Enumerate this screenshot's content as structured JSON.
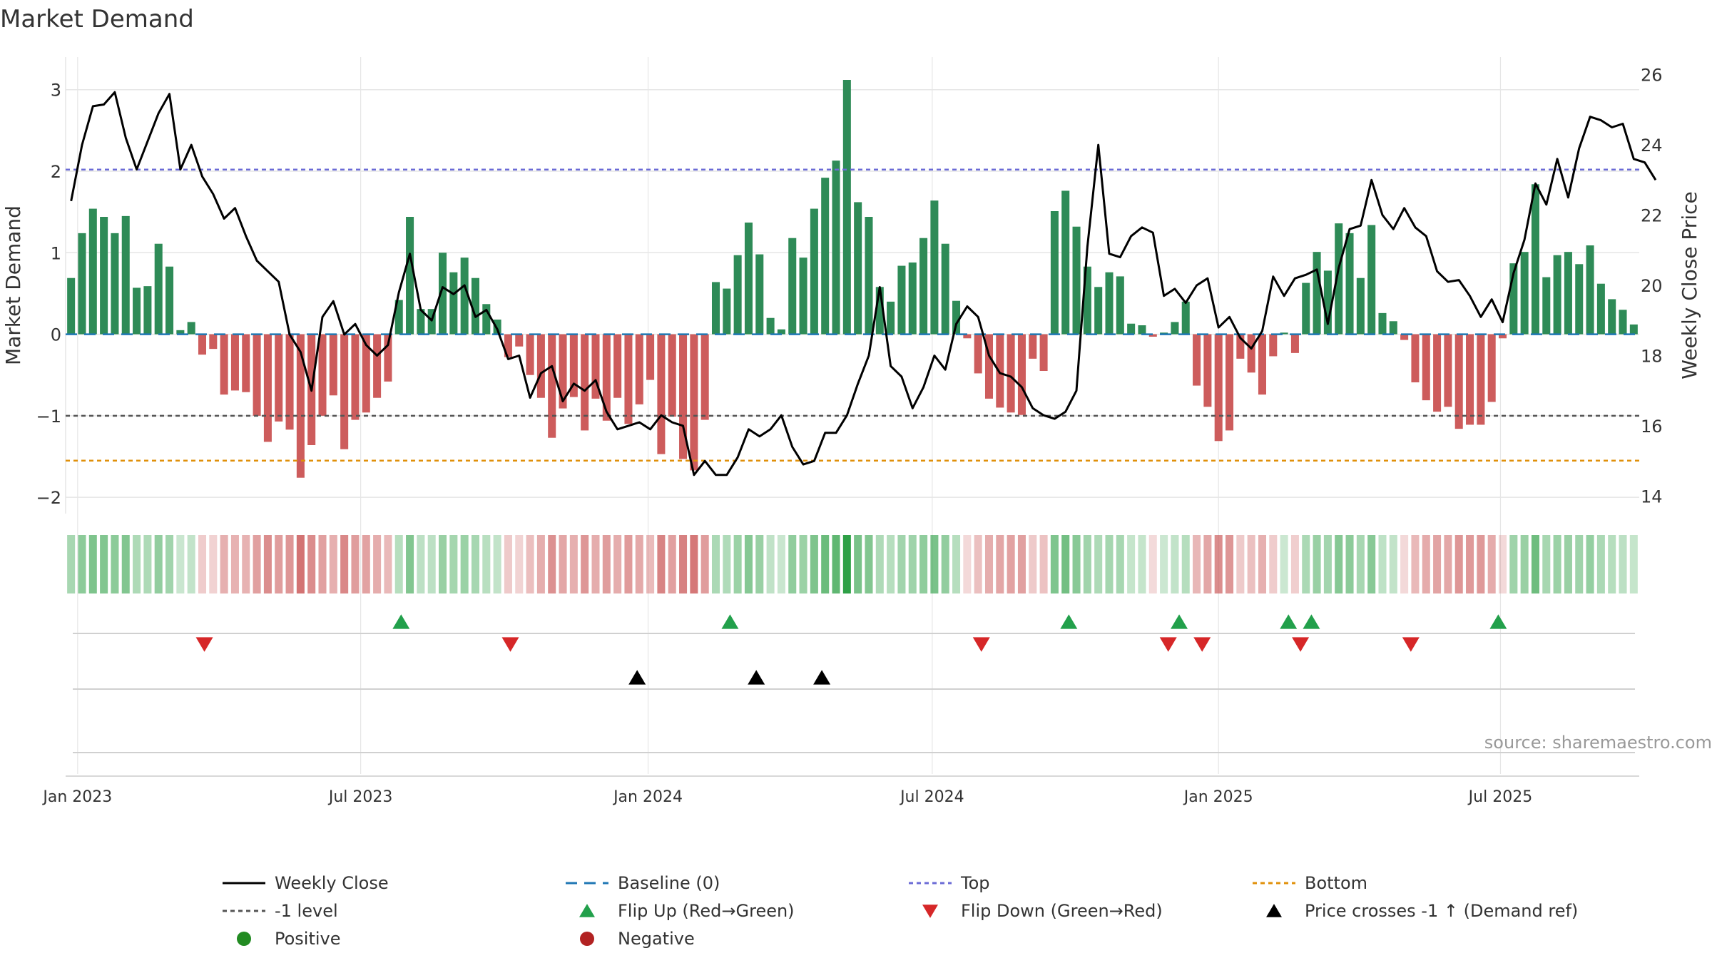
{
  "chart_data": {
    "type": "bar+line",
    "title": "Market Demand",
    "ylabel_left": "Market Demand",
    "ylabel_right": "Weekly Close Price",
    "source": "source: sharemaestro.com",
    "ylim_left": [
      -2.2,
      3.4
    ],
    "ylim_right": [
      13.5,
      26.5
    ],
    "yticks_left": [
      3,
      2,
      1,
      0,
      -1,
      -2
    ],
    "ytick_labels_left": [
      "3",
      "2",
      "1",
      "0",
      "−1",
      "−2"
    ],
    "yticks_right": [
      26,
      24,
      22,
      20,
      18,
      16,
      14
    ],
    "ytick_labels_right": [
      "26",
      "24",
      "22",
      "20",
      "18",
      "16",
      "14"
    ],
    "x_ticks": [
      {
        "label": "Jan 2023",
        "week": 0.6
      },
      {
        "label": "Jul 2023",
        "week": 26.5
      },
      {
        "label": "Jan 2024",
        "week": 52.8
      },
      {
        "label": "Jul 2024",
        "week": 78.8
      },
      {
        "label": "Jan 2025",
        "week": 105.0
      },
      {
        "label": "Jul 2025",
        "week": 130.8
      }
    ],
    "reference_lines": {
      "baseline": 0,
      "top": 2.02,
      "minus_one": -1.0,
      "bottom": -1.55
    },
    "colors": {
      "positive": "#2e8b57",
      "negative": "#cd5c5c",
      "close": "#000000",
      "top": "#6b6bd6",
      "bottom": "#e0900a",
      "minus_one": "#555555",
      "baseline": "#1f77b4",
      "flip_up": "#22a04b",
      "flip_down": "#d62728",
      "cross": "#000000",
      "grid": "#e6e6e6",
      "panel_line": "#d0d0d0"
    },
    "demand": [
      0.69,
      1.24,
      1.54,
      1.44,
      1.24,
      1.45,
      0.57,
      0.59,
      1.11,
      0.83,
      0.05,
      0.15,
      -0.25,
      -0.18,
      -0.74,
      -0.69,
      -0.71,
      -1.0,
      -1.32,
      -1.07,
      -1.17,
      -1.76,
      -1.36,
      -1.0,
      -0.75,
      -1.41,
      -1.05,
      -0.96,
      -0.78,
      -0.58,
      0.42,
      1.44,
      0.31,
      0.31,
      1.0,
      0.76,
      0.94,
      0.69,
      0.37,
      0.18,
      -0.28,
      -0.15,
      -0.5,
      -0.78,
      -1.27,
      -0.91,
      -0.77,
      -1.18,
      -0.79,
      -1.06,
      -0.78,
      -1.1,
      -0.86,
      -0.56,
      -1.47,
      -1.01,
      -1.53,
      -1.67,
      -1.05,
      0.64,
      0.56,
      0.97,
      1.37,
      0.98,
      0.2,
      0.06,
      1.18,
      0.94,
      1.54,
      1.92,
      2.13,
      3.12,
      1.62,
      1.44,
      0.58,
      0.4,
      0.84,
      0.88,
      1.18,
      1.64,
      1.11,
      0.41,
      -0.05,
      -0.48,
      -0.79,
      -0.9,
      -0.96,
      -0.99,
      -0.3,
      -0.45,
      1.51,
      1.76,
      1.32,
      0.83,
      0.58,
      0.76,
      0.71,
      0.13,
      0.11,
      -0.03,
      0.02,
      0.15,
      0.4,
      -0.63,
      -0.89,
      -1.31,
      -1.18,
      -0.3,
      -0.47,
      -0.74,
      -0.27,
      0.02,
      -0.23,
      0.63,
      1.01,
      0.78,
      1.36,
      1.24,
      0.69,
      1.34,
      0.26,
      0.16,
      -0.07,
      -0.59,
      -0.81,
      -0.95,
      -0.89,
      -1.16,
      -1.11,
      -1.11,
      -0.83,
      -0.05,
      0.87,
      1.01,
      1.84,
      0.7,
      0.97,
      1.01,
      0.86,
      1.09,
      0.62,
      0.43,
      0.3,
      0.12
    ],
    "weekly_close": [
      22.4,
      24.0,
      25.1,
      25.15,
      25.5,
      24.2,
      23.3,
      24.1,
      24.9,
      25.45,
      23.3,
      24.0,
      23.1,
      22.6,
      21.9,
      22.2,
      21.4,
      20.7,
      20.4,
      20.1,
      18.6,
      18.1,
      17.0,
      19.1,
      19.55,
      18.6,
      18.9,
      18.3,
      18.0,
      18.3,
      19.8,
      20.9,
      19.3,
      19.0,
      19.95,
      19.75,
      20.0,
      19.1,
      19.3,
      18.75,
      17.9,
      18.0,
      16.8,
      17.5,
      17.7,
      16.7,
      17.2,
      17.0,
      17.3,
      16.4,
      15.9,
      16.0,
      16.1,
      15.9,
      16.3,
      16.1,
      16.0,
      14.6,
      15.0,
      14.6,
      14.6,
      15.1,
      15.9,
      15.7,
      15.9,
      16.3,
      15.4,
      14.9,
      15.0,
      15.8,
      15.8,
      16.3,
      17.2,
      18.0,
      19.95,
      17.7,
      17.4,
      16.5,
      17.1,
      18.0,
      17.6,
      18.9,
      19.4,
      19.1,
      18.0,
      17.5,
      17.4,
      17.1,
      16.5,
      16.3,
      16.2,
      16.4,
      17.0,
      21.1,
      24.0,
      20.9,
      20.8,
      21.4,
      21.65,
      21.5,
      19.7,
      19.9,
      19.5,
      20.0,
      20.2,
      18.8,
      19.1,
      18.5,
      18.2,
      18.7,
      20.25,
      19.7,
      20.2,
      20.3,
      20.45,
      18.9,
      20.5,
      21.6,
      21.7,
      23.0,
      22.0,
      21.6,
      22.2,
      21.65,
      21.4,
      20.4,
      20.1,
      20.15,
      19.7,
      19.1,
      19.6,
      18.95,
      20.35,
      21.3,
      22.9,
      22.3,
      23.6,
      22.5,
      23.9,
      24.8,
      24.7,
      24.5,
      24.6,
      23.6,
      23.5,
      23.0
    ],
    "flips_up_weeks": [
      30.2,
      60.3,
      91.3,
      101.4,
      111.4,
      113.5,
      130.6
    ],
    "flips_down_weeks": [
      12.2,
      40.2,
      83.3,
      100.4,
      103.5,
      112.5,
      122.6
    ],
    "price_cross_weeks": [
      51.8,
      62.7,
      68.7
    ],
    "legend": [
      {
        "label": "Weekly Close",
        "symbol": "line-solid",
        "color": "#000000"
      },
      {
        "label": "Baseline (0)",
        "symbol": "line-dashed",
        "color": "#1f77b4"
      },
      {
        "label": "Top",
        "symbol": "line-dotted",
        "color": "#6b6bd6"
      },
      {
        "label": "Bottom",
        "symbol": "line-dotted",
        "color": "#e0900a"
      },
      {
        "label": "-1 level",
        "symbol": "line-dotted",
        "color": "#555555"
      },
      {
        "label": "Flip Up (Red→Green)",
        "symbol": "tri-up",
        "color": "#22a04b"
      },
      {
        "label": "Flip Down (Green→Red)",
        "symbol": "tri-down",
        "color": "#d62728"
      },
      {
        "label": "Price crosses -1 ↑ (Demand ref)",
        "symbol": "tri-up",
        "color": "#000000"
      },
      {
        "label": "Positive",
        "symbol": "circle",
        "color": "#228b22"
      },
      {
        "label": "Negative",
        "symbol": "circle",
        "color": "#b22222"
      }
    ]
  }
}
